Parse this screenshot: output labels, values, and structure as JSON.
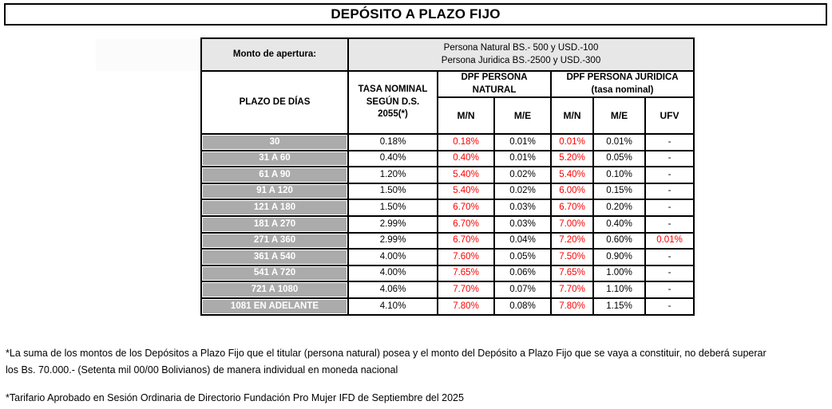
{
  "title": "DEPÓSITO A PLAZO FIJO",
  "colors": {
    "border": "#000000",
    "red_rate": "#FF0000",
    "row_header_bg": "#ABABAB",
    "monto_row_bg": "#E7E7E7",
    "row_header_text": "#FFFFFF"
  },
  "table": {
    "monto": {
      "label": "Monto de apertura:",
      "value": "Persona Natural BS.- 500 y USD.-100\nPersona Juridica BS.-2500 y USD.-300"
    },
    "headers": {
      "plazo": "PLAZO DE DÍAS",
      "tasa": "TASA NOMINAL\nSEGÚN D.S.\n2055(*)",
      "grupo_natural": "DPF PERSONA\nNATURAL",
      "grupo_juridica": "DPF PERSONA JURIDICA\n(tasa nominal)",
      "sub": [
        "M/N",
        "M/E",
        "M/N",
        "M/E",
        "UFV"
      ]
    },
    "rows": [
      {
        "plazo": "30",
        "tasa": "0.18%",
        "nat_mn": "0.18%",
        "nat_me": "0.01%",
        "jur_mn": "0.01%",
        "jur_me": "0.01%",
        "ufv": "-"
      },
      {
        "plazo": "31 A 60",
        "tasa": "0.40%",
        "nat_mn": "0.40%",
        "nat_me": "0.01%",
        "jur_mn": "5.20%",
        "jur_me": "0.05%",
        "ufv": "-"
      },
      {
        "plazo": "61 A 90",
        "tasa": "1.20%",
        "nat_mn": "5.40%",
        "nat_me": "0.02%",
        "jur_mn": "5.40%",
        "jur_me": "0.10%",
        "ufv": "-"
      },
      {
        "plazo": "91 A 120",
        "tasa": "1.50%",
        "nat_mn": "5.40%",
        "nat_me": "0.02%",
        "jur_mn": "6.00%",
        "jur_me": "0.15%",
        "ufv": "-"
      },
      {
        "plazo": "121 A 180",
        "tasa": "1.50%",
        "nat_mn": "6.70%",
        "nat_me": "0.03%",
        "jur_mn": "6.70%",
        "jur_me": "0.20%",
        "ufv": "-"
      },
      {
        "plazo": "181 A 270",
        "tasa": "2.99%",
        "nat_mn": "6.70%",
        "nat_me": "0.03%",
        "jur_mn": "7.00%",
        "jur_me": "0.40%",
        "ufv": "-"
      },
      {
        "plazo": "271 A 360",
        "tasa": "2.99%",
        "nat_mn": "6.70%",
        "nat_me": "0.04%",
        "jur_mn": "7.20%",
        "jur_me": "0.60%",
        "ufv": "0.01%"
      },
      {
        "plazo": "361 A 540",
        "tasa": "4.00%",
        "nat_mn": "7.60%",
        "nat_me": "0.05%",
        "jur_mn": "7.50%",
        "jur_me": "0.90%",
        "ufv": "-"
      },
      {
        "plazo": "541 A 720",
        "tasa": "4.00%",
        "nat_mn": "7.65%",
        "nat_me": "0.06%",
        "jur_mn": "7.65%",
        "jur_me": "1.00%",
        "ufv": "-"
      },
      {
        "plazo": "721 A 1080",
        "tasa": "4.06%",
        "nat_mn": "7.70%",
        "nat_me": "0.07%",
        "jur_mn": "7.70%",
        "jur_me": "1.10%",
        "ufv": "-"
      },
      {
        "plazo": "1081 EN ADELANTE",
        "tasa": "4.10%",
        "nat_mn": "7.80%",
        "nat_me": "0.08%",
        "jur_mn": "7.80%",
        "jur_me": "1.15%",
        "ufv": "-"
      }
    ]
  },
  "footnotes": [
    "*La suma de los montos de los Depósitos a Plazo Fijo que el titular (persona natural) posea y el monto del Depósito a Plazo Fijo que se vaya a constituir, no deberá superar los Bs. 70.000.- (Setenta mil 00/00 Bolivianos) de manera individual en moneda nacional",
    "*Tarifario Aprobado en Sesión Ordinaria de Directorio Fundación Pro Mujer IFD de Septiembre del 2025"
  ]
}
